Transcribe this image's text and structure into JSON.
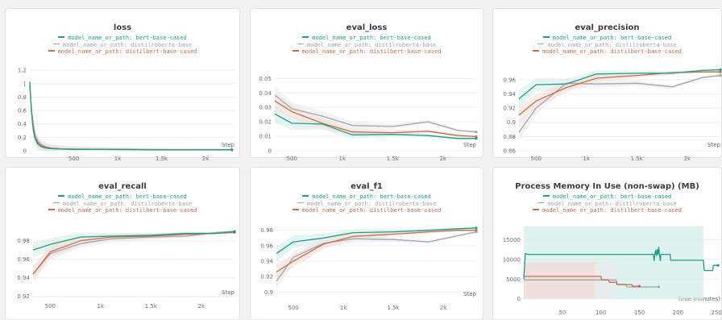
{
  "colors": {
    "bert": "#1e9e89",
    "roberta": "#a3a5ab",
    "distilbert": "#c46f50",
    "bert_band": "#d3ede8",
    "roberta_band": "#e9eaec",
    "distilbert_band": "#f3ded5",
    "grid": "#eceef1"
  },
  "legend": [
    {
      "label": "model_name_or_path: bert-base-cased",
      "color_key": "bert"
    },
    {
      "label": "model_name_or_path: distilroberta-base",
      "color_key": "roberta"
    },
    {
      "label": "model_name_or_path: distilbert-base-cased",
      "color_key": "distilbert"
    }
  ],
  "chart_data": [
    {
      "type": "line",
      "title": "loss",
      "xlabel": "Step",
      "xlim": [
        0,
        2330
      ],
      "ylim": [
        0,
        1.25
      ],
      "x_ticks": [
        500,
        1000,
        1500,
        2000
      ],
      "x_tick_labels": [
        "500",
        "1k",
        "1.5k",
        "2k"
      ],
      "y_ticks": [
        0,
        0.2,
        0.4,
        0.6,
        0.8,
        1,
        1.2
      ],
      "y_tick_labels": [
        "0",
        "0.2",
        "0.4",
        "0.6",
        "0.8",
        "1",
        "1.2"
      ],
      "series": [
        {
          "name": "bert-base-cased",
          "color_key": "bert",
          "x": [
            0,
            20,
            40,
            60,
            90,
            130,
            180,
            250,
            350,
            500,
            700,
            1000,
            1300,
            1600,
            1900,
            2200,
            2300
          ],
          "y": [
            1.03,
            0.55,
            0.3,
            0.18,
            0.1,
            0.06,
            0.04,
            0.03,
            0.025,
            0.02,
            0.02,
            0.018,
            0.016,
            0.015,
            0.015,
            0.014,
            0.014
          ]
        },
        {
          "name": "distilroberta-base",
          "color_key": "roberta",
          "x": [
            0,
            20,
            40,
            60,
            90,
            130,
            180,
            250,
            350,
            500,
            700,
            1000,
            1300,
            1600,
            1900,
            2200,
            2300
          ],
          "y": [
            0.95,
            0.6,
            0.38,
            0.24,
            0.15,
            0.09,
            0.06,
            0.04,
            0.03,
            0.025,
            0.022,
            0.02,
            0.018,
            0.017,
            0.016,
            0.015,
            0.015
          ]
        },
        {
          "name": "distilbert-base-cased",
          "color_key": "distilbert",
          "x": [
            0,
            20,
            40,
            60,
            90,
            130,
            180,
            250,
            350,
            500,
            700,
            1000,
            1300,
            1600,
            1900,
            2200,
            2300
          ],
          "y": [
            0.98,
            0.58,
            0.34,
            0.2,
            0.12,
            0.075,
            0.05,
            0.035,
            0.028,
            0.022,
            0.02,
            0.019,
            0.017,
            0.016,
            0.015,
            0.015,
            0.014
          ]
        }
      ]
    },
    {
      "type": "line",
      "title": "eval_loss",
      "xlabel": "Step",
      "xlim": [
        330,
        2330
      ],
      "ylim": [
        0,
        0.058
      ],
      "x_ticks": [
        500,
        1000,
        1500,
        2000
      ],
      "x_tick_labels": [
        "500",
        "1k",
        "1.5k",
        "2k"
      ],
      "y_ticks": [
        0,
        0.01,
        0.02,
        0.03,
        0.04,
        0.05
      ],
      "y_tick_labels": [
        "0",
        "0.01",
        "0.02",
        "0.03",
        "0.04",
        "0.05"
      ],
      "series": [
        {
          "name": "bert-base-cased",
          "color_key": "bert",
          "x": [
            330,
            500,
            800,
            1100,
            1500,
            1850,
            2150,
            2330
          ],
          "y": [
            0.0255,
            0.019,
            0.0185,
            0.011,
            0.0113,
            0.0105,
            0.0085,
            0.0085
          ]
        },
        {
          "name": "distilroberta-base",
          "color_key": "roberta",
          "x": [
            330,
            500,
            800,
            1100,
            1500,
            1850,
            2150,
            2330
          ],
          "y": [
            0.0385,
            0.029,
            0.024,
            0.0175,
            0.0168,
            0.02,
            0.014,
            0.013
          ]
        },
        {
          "name": "distilbert-base-cased",
          "color_key": "distilbert",
          "x": [
            330,
            500,
            800,
            1100,
            1500,
            1850,
            2150,
            2330
          ],
          "y": [
            0.0345,
            0.027,
            0.019,
            0.013,
            0.0125,
            0.0135,
            0.0105,
            0.0098
          ]
        }
      ]
    },
    {
      "type": "line",
      "title": "eval_precision",
      "xlabel": "Step",
      "xlim": [
        330,
        2330
      ],
      "ylim": [
        0.86,
        0.978
      ],
      "x_ticks": [
        500,
        1000,
        1500,
        2000
      ],
      "x_tick_labels": [
        "500",
        "1k",
        "1.5k",
        "2k"
      ],
      "y_ticks": [
        0.86,
        0.88,
        0.9,
        0.92,
        0.94,
        0.96
      ],
      "y_tick_labels": [
        "0.86",
        "0.88",
        "0.9",
        "0.92",
        "0.94",
        "0.96"
      ],
      "series": [
        {
          "name": "bert-base-cased",
          "color_key": "bert",
          "x": [
            330,
            500,
            800,
            1100,
            1500,
            1850,
            2150,
            2330
          ],
          "y": [
            0.933,
            0.953,
            0.954,
            0.968,
            0.969,
            0.969,
            0.973,
            0.974
          ]
        },
        {
          "name": "distilroberta-base",
          "color_key": "roberta",
          "x": [
            330,
            500,
            800,
            1100,
            1500,
            1850,
            2150,
            2330
          ],
          "y": [
            0.886,
            0.92,
            0.955,
            0.954,
            0.955,
            0.95,
            0.963,
            0.966
          ]
        },
        {
          "name": "distilbert-base-cased",
          "color_key": "distilbert",
          "x": [
            330,
            500,
            800,
            1100,
            1500,
            1850,
            2150,
            2330
          ],
          "y": [
            0.91,
            0.93,
            0.949,
            0.962,
            0.966,
            0.97,
            0.971,
            0.971
          ]
        }
      ]
    },
    {
      "type": "line",
      "title": "eval_recall",
      "xlabel": "Step",
      "xlim": [
        330,
        2330
      ],
      "ylim": [
        0.918,
        0.998
      ],
      "x_ticks": [
        500,
        1000,
        1500,
        2000
      ],
      "x_tick_labels": [
        "500",
        "1k",
        "1.5k",
        "2k"
      ],
      "y_ticks": [
        0.92,
        0.94,
        0.96,
        0.98
      ],
      "y_tick_labels": [
        "0.92",
        "0.94",
        "0.96",
        "0.98"
      ],
      "series": [
        {
          "name": "bert-base-cased",
          "color_key": "bert",
          "x": [
            330,
            500,
            800,
            1100,
            1500,
            1850,
            2150,
            2330
          ],
          "y": [
            0.97,
            0.976,
            0.984,
            0.985,
            0.986,
            0.988,
            0.988,
            0.99
          ]
        },
        {
          "name": "distilroberta-base",
          "color_key": "roberta",
          "x": [
            330,
            500,
            800,
            1100,
            1500,
            1850,
            2150,
            2330
          ],
          "y": [
            0.944,
            0.966,
            0.977,
            0.982,
            0.984,
            0.985,
            0.989,
            0.99
          ]
        },
        {
          "name": "distilbert-base-cased",
          "color_key": "distilbert",
          "x": [
            330,
            500,
            800,
            1100,
            1500,
            1850,
            2150,
            2330
          ],
          "y": [
            0.944,
            0.968,
            0.98,
            0.984,
            0.985,
            0.987,
            0.988,
            0.989
          ]
        }
      ]
    },
    {
      "type": "line",
      "title": "eval_f1",
      "xlabel": "Step",
      "xlim": [
        330,
        2330
      ],
      "ylim": [
        0.89,
        0.988
      ],
      "x_ticks": [
        500,
        1000,
        1500,
        2000
      ],
      "x_tick_labels": [
        "500",
        "1k",
        "1.5k",
        "2k"
      ],
      "y_ticks": [
        0.9,
        0.92,
        0.94,
        0.96,
        0.98
      ],
      "y_tick_labels": [
        "0.9",
        "0.92",
        "0.94",
        "0.96",
        "0.98"
      ],
      "series": [
        {
          "name": "bert-base-cased",
          "color_key": "bert",
          "x": [
            330,
            500,
            800,
            1100,
            1500,
            1850,
            2150,
            2330
          ],
          "y": [
            0.95,
            0.965,
            0.97,
            0.977,
            0.978,
            0.98,
            0.982,
            0.983
          ]
        },
        {
          "name": "distilroberta-base",
          "color_key": "roberta",
          "x": [
            330,
            500,
            800,
            1100,
            1500,
            1850,
            2150,
            2330
          ],
          "y": [
            0.914,
            0.945,
            0.963,
            0.969,
            0.968,
            0.965,
            0.973,
            0.978
          ]
        },
        {
          "name": "distilbert-base-cased",
          "color_key": "distilbert",
          "x": [
            330,
            500,
            800,
            1100,
            1500,
            1850,
            2150,
            2330
          ],
          "y": [
            0.926,
            0.94,
            0.962,
            0.972,
            0.975,
            0.978,
            0.98,
            0.98
          ]
        }
      ]
    },
    {
      "type": "line",
      "title": "Process Memory In Use (non-swap) (MB)",
      "xlabel": "Time (minutes)",
      "xlim": [
        0,
        255
      ],
      "ylim": [
        -1500,
        19000
      ],
      "x_ticks": [
        50,
        100,
        150,
        200,
        250
      ],
      "x_tick_labels": [
        "50",
        "100",
        "150",
        "200",
        "250"
      ],
      "y_ticks": [
        0,
        5000,
        10000,
        15000
      ],
      "y_tick_labels": [
        "0",
        "5000",
        "10000",
        "15000"
      ],
      "bands": [
        {
          "color_key": "bert_band",
          "x0": 0,
          "x1": 233,
          "y0": 0,
          "y1": 18500
        },
        {
          "color_key": "roberta_band",
          "x0": 0,
          "x1": 120,
          "y0": 0,
          "y1": 9400
        },
        {
          "color_key": "distilbert_band",
          "x0": 0,
          "x1": 93,
          "y0": 0,
          "y1": 9200
        }
      ],
      "series": [
        {
          "name": "bert-base-cased",
          "color_key": "bert",
          "x": [
            0,
            2,
            5,
            60,
            120,
            160,
            168,
            169,
            170,
            171,
            172,
            173,
            174,
            175,
            176,
            177,
            178,
            179,
            180,
            181,
            182,
            190,
            190.5,
            233,
            234,
            245,
            246,
            252
          ],
          "y": [
            5000,
            11500,
            11300,
            11300,
            11300,
            11300,
            11300,
            9700,
            11300,
            12300,
            11000,
            12500,
            11200,
            13100,
            11300,
            9700,
            11300,
            11300,
            11300,
            11300,
            11300,
            11300,
            9800,
            9800,
            7200,
            7200,
            8500,
            8500
          ]
        },
        {
          "name": "distilroberta-base",
          "color_key": "roberta",
          "x": [
            0,
            100,
            120,
            121,
            132,
            134,
            160,
            175
          ],
          "y": [
            4800,
            4800,
            4800,
            3700,
            3700,
            3000,
            3000,
            3000
          ]
        },
        {
          "name": "distilbert-base-cased",
          "color_key": "distilbert",
          "x": [
            0,
            100,
            101,
            110,
            111,
            120,
            121,
            140,
            141,
            150
          ],
          "y": [
            5700,
            5700,
            4800,
            4800,
            4200,
            4200,
            3600,
            3600,
            3200,
            3200
          ]
        }
      ]
    }
  ]
}
